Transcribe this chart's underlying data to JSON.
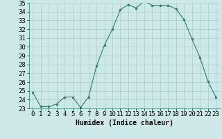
{
  "xlabel": "Humidex (Indice chaleur)",
  "x": [
    0,
    1,
    2,
    3,
    4,
    5,
    6,
    7,
    8,
    9,
    10,
    11,
    12,
    13,
    14,
    15,
    16,
    17,
    18,
    19,
    20,
    21,
    22,
    23
  ],
  "y": [
    24.8,
    23.2,
    23.2,
    23.5,
    24.3,
    24.3,
    23.1,
    24.3,
    27.8,
    30.2,
    32.0,
    34.2,
    34.8,
    34.4,
    35.2,
    34.7,
    34.7,
    34.7,
    34.3,
    33.1,
    30.9,
    28.8,
    26.1,
    24.3
  ],
  "ylim": [
    23,
    35
  ],
  "yticks": [
    23,
    24,
    25,
    26,
    27,
    28,
    29,
    30,
    31,
    32,
    33,
    34,
    35
  ],
  "line_color": "#2e7d6e",
  "marker": "o",
  "marker_size": 2.0,
  "bg_color": "#cce8e8",
  "grid_color": "#aacccc",
  "fig_bg": "#cce8e8",
  "tick_fontsize": 6.5,
  "xlabel_fontsize": 7.0
}
